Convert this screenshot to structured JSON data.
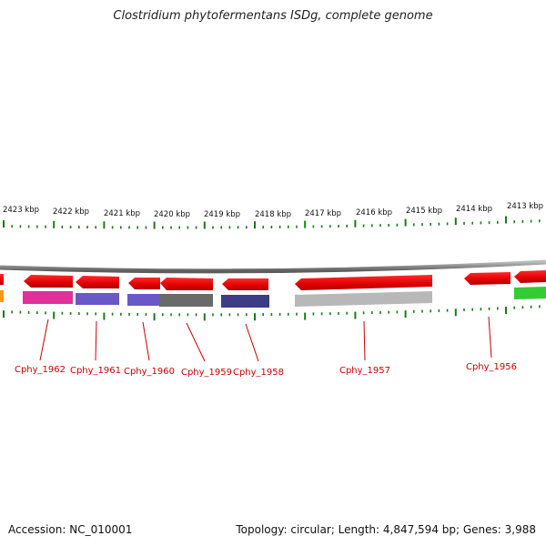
{
  "title": "Clostridium phytofermentans ISDg, complete genome",
  "footer": {
    "accession": "Accession: NC_010001",
    "summary": "Topology: circular; Length: 4,847,594 bp; Genes: 3,988"
  },
  "scale_labels": [
    "2423 kbp",
    "2422 kbp",
    "2421 kbp",
    "2420 kbp",
    "2419 kbp",
    "2418 kbp",
    "2417 kbp",
    "2416 kbp",
    "2415 kbp",
    "2414 kbp",
    "2413 kbp"
  ],
  "gene_labels": [
    "Cphy_1962",
    "Cphy_1961",
    "Cphy_1960",
    "Cphy_1959",
    "Cphy_1958",
    "Cphy_1957",
    "Cphy_1956"
  ],
  "colors": {
    "backbone": "#8a8a8a",
    "gene_arrow": "#ee0000",
    "tick": "#1a7a1a",
    "label": "#cc0000"
  }
}
